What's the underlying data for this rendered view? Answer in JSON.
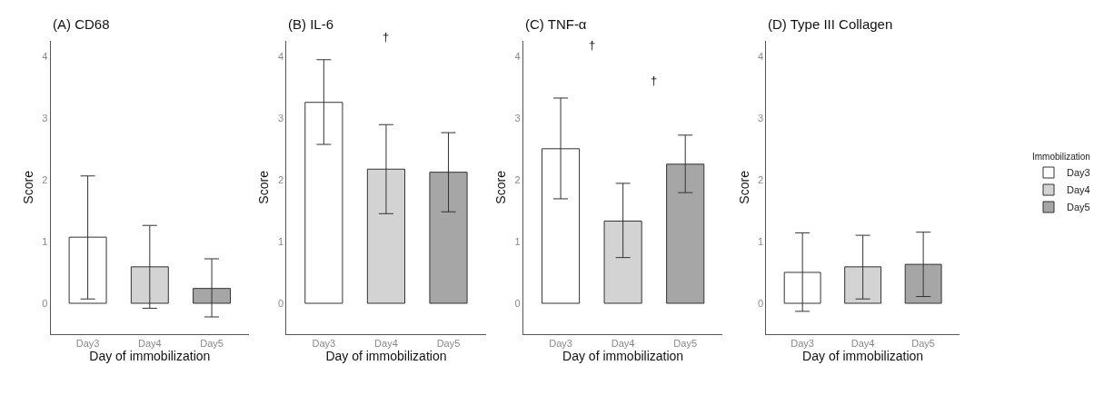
{
  "chart_data": [
    {
      "type": "bar",
      "title": "(A) CD68",
      "xlabel": "Day of immobilization",
      "ylabel": "Score",
      "categories": [
        "Day3",
        "Day4",
        "Day5"
      ],
      "values": [
        1.07,
        0.59,
        0.24
      ],
      "colors": [
        "#ffffff",
        "#d3d3d3",
        "#a6a6a6"
      ],
      "errors": [
        [
          0.07,
          2.06
        ],
        [
          -0.08,
          1.26
        ],
        [
          -0.22,
          0.72
        ]
      ],
      "ylim": [
        -0.5,
        4.25
      ],
      "yticks": [
        0,
        1,
        2,
        3,
        4
      ]
    },
    {
      "type": "bar",
      "title": "(B) IL-6",
      "xlabel": "Day of immobilization",
      "ylabel": "Score",
      "categories": [
        "Day3",
        "Day4",
        "Day5"
      ],
      "values": [
        3.25,
        2.17,
        2.12
      ],
      "colors": [
        "#ffffff",
        "#d3d3d3",
        "#a6a6a6"
      ],
      "errors": [
        [
          2.57,
          3.94
        ],
        [
          1.45,
          2.89
        ],
        [
          1.48,
          2.76
        ]
      ],
      "ylim": [
        -0.5,
        4.25
      ],
      "yticks": [
        0,
        1,
        2,
        3,
        4
      ],
      "annotations": [
        "†"
      ]
    },
    {
      "type": "bar",
      "title": "(C) TNF-α",
      "xlabel": "Day of immobilization",
      "ylabel": "Score",
      "categories": [
        "Day3",
        "Day4",
        "Day5"
      ],
      "values": [
        2.5,
        1.33,
        2.25
      ],
      "colors": [
        "#ffffff",
        "#d3d3d3",
        "#a6a6a6"
      ],
      "errors": [
        [
          1.69,
          3.32
        ],
        [
          0.74,
          1.94
        ],
        [
          1.79,
          2.72
        ]
      ],
      "ylim": [
        -0.5,
        4.25
      ],
      "yticks": [
        0,
        1,
        2,
        3,
        4
      ],
      "annotations": [
        "†",
        "†"
      ]
    },
    {
      "type": "bar",
      "title": "(D) Type III Collagen",
      "xlabel": "Day of immobilization",
      "ylabel": "Score",
      "legend_title": "Immobilization",
      "categories": [
        "Day3",
        "Day4",
        "Day5"
      ],
      "series": [
        {
          "name": "Day3",
          "color": "#ffffff",
          "values": [
            0.5,
            null,
            null
          ],
          "errors": [
            [
              -0.13,
              1.14
            ],
            null,
            null
          ]
        },
        {
          "name": "Day4",
          "color": "#d3d3d3",
          "values": [
            null,
            0.59,
            null
          ],
          "errors": [
            null,
            [
              0.07,
              1.1
            ],
            null
          ]
        },
        {
          "name": "Day5",
          "color": "#a6a6a6",
          "values": [
            null,
            null,
            0.63
          ],
          "errors": [
            null,
            null,
            [
              0.11,
              1.15
            ]
          ]
        }
      ],
      "ylim": [
        -0.5,
        4.25
      ],
      "yticks": [
        0,
        1,
        2,
        3,
        4
      ],
      "legend": "right"
    }
  ]
}
